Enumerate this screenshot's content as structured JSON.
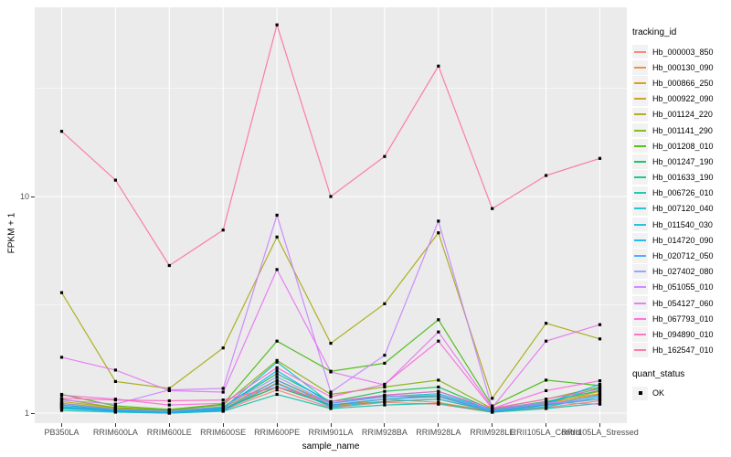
{
  "axes": {
    "x_title": "sample_name",
    "y_title": "FPKM + 1"
  },
  "legend": {
    "tracking_title": "tracking_id",
    "quant_title": "quant_status",
    "quant_items": [
      {
        "label": "OK"
      }
    ]
  },
  "chart_data": {
    "type": "line",
    "title": "",
    "xlabel": "sample_name",
    "ylabel": "FPKM + 1",
    "y_scale": "log10",
    "grid": true,
    "legend_position": "right",
    "panel_bg": "#EBEBEB",
    "grid_color": "#FFFFFF",
    "point_color": "#000000",
    "point_shape": "square",
    "y_ticks": [
      1,
      10
    ],
    "y_tick_labels": [
      "1",
      "10"
    ],
    "y_minor_ticks": [
      3.162,
      31.62
    ],
    "ylim": [
      0.9,
      74.6
    ],
    "categories": [
      "PB350LA",
      "RRIM600LA",
      "RRIM600LE",
      "RRIM600SE",
      "RRIM600PE",
      "RRIM901LA",
      "RRIM928BA",
      "RRIM928LA",
      "RRIM928LE",
      "RRII105LA_Control",
      "RRII105LA_Stressed"
    ],
    "series": [
      {
        "name": "Hb_000003_850",
        "color": "#F8766D",
        "values": [
          1.06,
          1.02,
          1.01,
          1.03,
          1.28,
          1.06,
          1.12,
          1.1,
          1.01,
          1.06,
          1.14
        ]
      },
      {
        "name": "Hb_000130_090",
        "color": "#EA8331",
        "values": [
          1.09,
          1.03,
          1.01,
          1.04,
          1.38,
          1.08,
          1.16,
          1.12,
          1.02,
          1.09,
          1.22
        ]
      },
      {
        "name": "Hb_000866_250",
        "color": "#D89000",
        "values": [
          1.11,
          1.05,
          1.02,
          1.05,
          1.32,
          1.09,
          1.13,
          1.16,
          1.02,
          1.1,
          1.26
        ]
      },
      {
        "name": "Hb_000922_090",
        "color": "#C09B00",
        "values": [
          1.13,
          1.06,
          1.03,
          1.06,
          1.42,
          1.11,
          1.2,
          1.19,
          1.03,
          1.12,
          1.23
        ]
      },
      {
        "name": "Hb_001124_220",
        "color": "#A3A500",
        "values": [
          3.6,
          1.4,
          1.3,
          2.0,
          6.5,
          2.1,
          3.2,
          6.8,
          1.17,
          2.6,
          2.2
        ]
      },
      {
        "name": "Hb_001141_290",
        "color": "#7CAE00",
        "values": [
          1.16,
          1.06,
          1.03,
          1.09,
          1.75,
          1.22,
          1.32,
          1.42,
          1.05,
          1.16,
          1.32
        ]
      },
      {
        "name": "Hb_001208_010",
        "color": "#39B600",
        "values": [
          1.22,
          1.08,
          1.04,
          1.1,
          2.15,
          1.56,
          1.7,
          2.7,
          1.08,
          1.42,
          1.34
        ]
      },
      {
        "name": "Hb_001247_190",
        "color": "#00BB4E",
        "values": [
          1.11,
          1.04,
          1.02,
          1.07,
          1.52,
          1.13,
          1.26,
          1.32,
          1.04,
          1.13,
          1.27
        ]
      },
      {
        "name": "Hb_001633_190",
        "color": "#00BF7D",
        "values": [
          1.06,
          1.02,
          1.01,
          1.04,
          1.32,
          1.09,
          1.16,
          1.21,
          1.02,
          1.09,
          1.16
        ]
      },
      {
        "name": "Hb_006726_010",
        "color": "#00C1A3",
        "values": [
          1.03,
          1.01,
          1.0,
          1.02,
          1.22,
          1.05,
          1.09,
          1.11,
          1.01,
          1.05,
          1.11
        ]
      },
      {
        "name": "Hb_007120_040",
        "color": "#00BFC4",
        "values": [
          1.07,
          1.03,
          1.01,
          1.05,
          1.72,
          1.11,
          1.19,
          1.23,
          1.03,
          1.11,
          1.31
        ]
      },
      {
        "name": "Hb_011540_030",
        "color": "#00BAE0",
        "values": [
          1.05,
          1.02,
          1.0,
          1.03,
          1.37,
          1.07,
          1.13,
          1.16,
          1.02,
          1.07,
          1.19
        ]
      },
      {
        "name": "Hb_014720_090",
        "color": "#00B0F6",
        "values": [
          1.09,
          1.03,
          1.02,
          1.06,
          1.57,
          1.11,
          1.21,
          1.26,
          1.03,
          1.11,
          1.36
        ]
      },
      {
        "name": "Hb_020712_050",
        "color": "#35A2FF",
        "values": [
          1.07,
          1.02,
          1.01,
          1.04,
          1.42,
          1.09,
          1.16,
          1.19,
          1.02,
          1.09,
          1.21
        ]
      },
      {
        "name": "Hb_027402_080",
        "color": "#9590FF",
        "values": [
          1.11,
          1.04,
          1.02,
          1.07,
          1.47,
          1.11,
          1.19,
          1.21,
          1.03,
          1.11,
          1.16
        ]
      },
      {
        "name": "Hb_051055_010",
        "color": "#C77CFF",
        "values": [
          1.15,
          1.1,
          1.28,
          1.3,
          8.2,
          1.25,
          1.85,
          7.7,
          1.05,
          1.12,
          1.1
        ]
      },
      {
        "name": "Hb_054127_060",
        "color": "#E76BF3",
        "values": [
          1.81,
          1.58,
          1.27,
          1.25,
          4.6,
          1.55,
          1.35,
          2.37,
          1.06,
          2.15,
          2.56
        ]
      },
      {
        "name": "Hb_067793_010",
        "color": "#FA62DB",
        "values": [
          1.21,
          1.16,
          1.09,
          1.11,
          1.62,
          1.19,
          1.36,
          2.15,
          1.05,
          1.27,
          1.41
        ]
      },
      {
        "name": "Hb_094890_010",
        "color": "#FF62BC",
        "values": [
          1.17,
          1.15,
          1.14,
          1.15,
          1.32,
          1.13,
          1.21,
          1.26,
          1.05,
          1.16,
          1.29
        ]
      },
      {
        "name": "Hb_162547_010",
        "color": "#FF6A98",
        "values": [
          20.0,
          11.9,
          4.8,
          7.0,
          62.0,
          10.0,
          15.3,
          40.0,
          8.8,
          12.5,
          15.0
        ]
      }
    ]
  }
}
